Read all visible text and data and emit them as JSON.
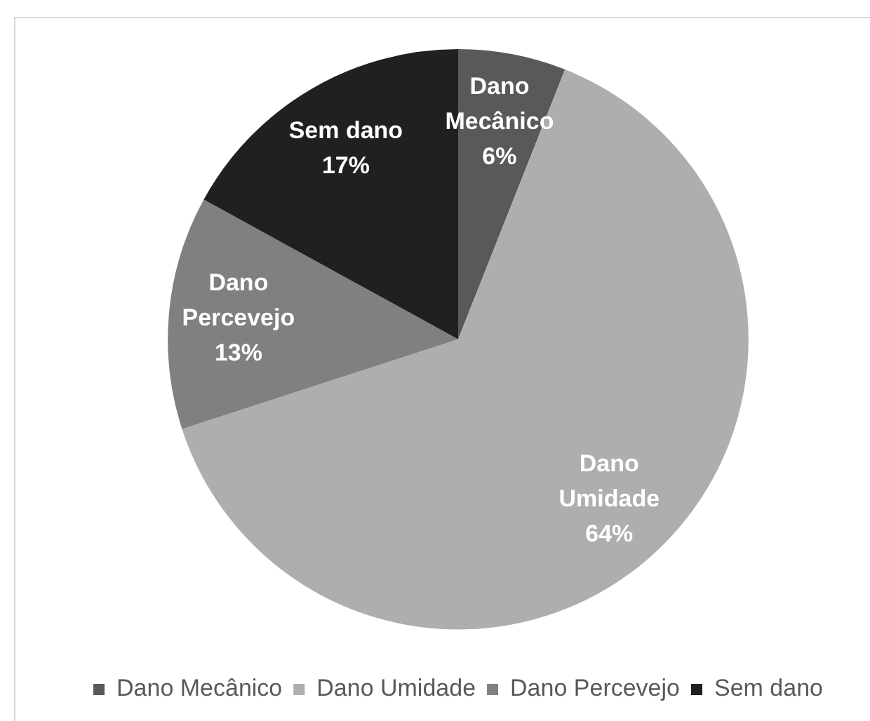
{
  "chart_data": {
    "type": "pie",
    "categories": [
      "Dano Mecânico",
      "Dano Umidade",
      "Dano Percevejo",
      "Sem dano"
    ],
    "values": [
      6,
      64,
      13,
      17
    ],
    "colors": [
      "#595959",
      "#aeaeae",
      "#808080",
      "#202020"
    ],
    "value_labels": [
      "6%",
      "64%",
      "13%",
      "17%"
    ],
    "legend": "bottom"
  }
}
